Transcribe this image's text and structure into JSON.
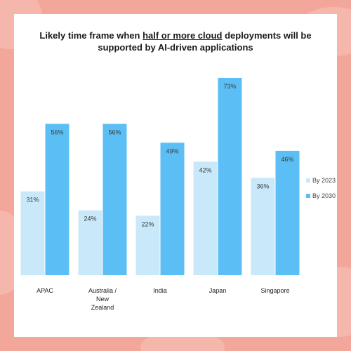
{
  "colors": {
    "background": "#f3a79a",
    "by2023": "#c9e8fa",
    "by2030": "#5bbff5"
  },
  "chart_data": {
    "type": "bar",
    "title_parts": [
      {
        "text": "Likely time frame when ",
        "u": false
      },
      {
        "text": "half or more cloud",
        "u": true
      },
      {
        "text": " deployments will  be supported by AI-driven applications",
        "u": false
      }
    ],
    "categories": [
      [
        "APAC"
      ],
      [
        "Australia /",
        "New",
        "Zealand"
      ],
      [
        "India"
      ],
      [
        "Japan"
      ],
      [
        "Singapore"
      ]
    ],
    "series": [
      {
        "name": "By 2023",
        "values": [
          31,
          24,
          22,
          42,
          36
        ],
        "labels": [
          "31%",
          "24%",
          "22%",
          "42%",
          "36%"
        ],
        "color": "#c9e8fa"
      },
      {
        "name": "By 2030",
        "values": [
          56,
          56,
          49,
          73,
          46
        ],
        "labels": [
          "56%",
          "56%",
          "49%",
          "73%",
          "46%"
        ],
        "color": "#5bbff5"
      }
    ],
    "ylim": [
      0,
      80
    ],
    "grid": false,
    "legend_position": "right"
  }
}
